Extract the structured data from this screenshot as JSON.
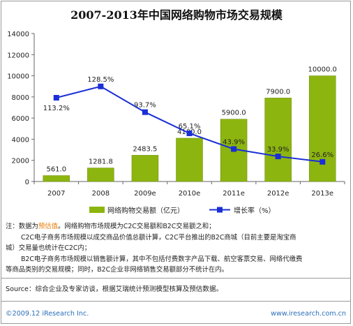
{
  "title": "2007-2013年中国网络购物市场交易规模",
  "chart_data": {
    "type": "bar",
    "categories": [
      "2007",
      "2008",
      "2009e",
      "2010e",
      "2011e",
      "2012e",
      "2013e"
    ],
    "series": [
      {
        "name": "网络购物交易额（亿元）",
        "type": "bar",
        "values": [
          561.0,
          1281.8,
          2483.5,
          4100.0,
          5900.0,
          7900.0,
          10000.0
        ],
        "labels": [
          "561.0",
          "1281.8",
          "2483.5",
          "4100.0",
          "5900.0",
          "7900.0",
          "10000.0"
        ],
        "color": "#8db50f"
      },
      {
        "name": "增长率（%）",
        "type": "line",
        "values": [
          113.2,
          128.5,
          93.7,
          65.1,
          43.9,
          33.9,
          26.6
        ],
        "labels": [
          "113.2%",
          "128.5%",
          "93.7%",
          "65.1%",
          "43.9%",
          "33.9%",
          "26.6%"
        ],
        "color": "#1a2fd6"
      }
    ],
    "yticks": [
      "0",
      "2000",
      "4000",
      "6000",
      "8000",
      "10000",
      "12000",
      "14000"
    ],
    "ylim": [
      0,
      14000
    ],
    "y2lim": [
      0,
      200
    ],
    "legend_position": "bottom",
    "grid": false
  },
  "notes": {
    "prefix": "注：数据为",
    "highlight": "预估值",
    "line1_rest": "。网络购物市场规模为C2C交易额和B2C交易额之和；",
    "line2": "C2C电子商务市场规模以成交商品价值总额计算，C2C平台推出的B2C商城（目前主要是淘宝商",
    "line3": "城）交易量也统计在C2C内；",
    "line4": "B2C电子商务市场规模以销售额计算，其中不包括付费数字产品下载、航空客票交易、网络代缴费",
    "line5": "等商品类别的交易规模；同时，B2C企业非网络销售交易额部分不统计在内。"
  },
  "source": "Source：综合企业及专家访谈，根据艾瑞统计预测模型核算及预估数据。",
  "footer": {
    "left": "©2009.12 iResearch Inc.",
    "right": "www.iresearch.com.cn"
  },
  "colors": {
    "bar": "#8db50f",
    "line": "#1a2fd6",
    "highlight": "#e87a00",
    "footer": "#2a6fb8"
  }
}
